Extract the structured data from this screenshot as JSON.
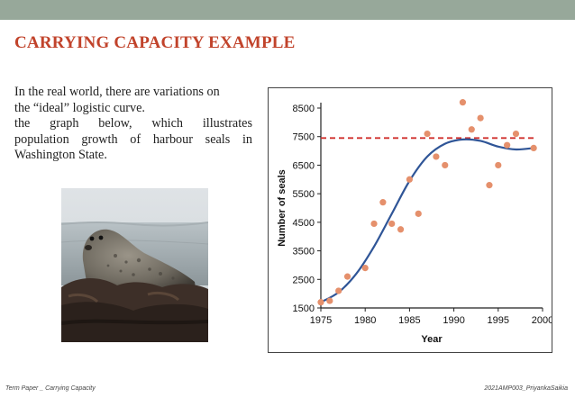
{
  "slide": {
    "title": "CARRYING CAPACITY EXAMPLE",
    "body_lines": [
      "In the real world, there are variations on",
      "the “ideal” logistic curve.",
      "the graph below, which illustrates",
      "population growth of harbour seals in",
      "Washington State."
    ],
    "footer_left": "Term Paper _ Carrying Capacity",
    "footer_right": "2021AMP003_PriyankaSaikia"
  },
  "colors": {
    "accent": "#c1432b",
    "top_bar": "#97a89a",
    "curve": "#2f5597",
    "points": "#e5906c",
    "capacity_line": "#d0312d"
  },
  "chart_data": {
    "type": "scatter",
    "xlabel": "Year",
    "ylabel": "Number of seals",
    "xlim": [
      1975,
      2000
    ],
    "ylim": [
      1500,
      8500
    ],
    "xticks": [
      1975,
      1980,
      1985,
      1990,
      1995,
      2000
    ],
    "yticks": [
      1500,
      2500,
      3500,
      4500,
      5500,
      6500,
      7500,
      8500
    ],
    "grid": false,
    "series": [
      {
        "kind": "points",
        "x": [
          1975,
          1976,
          1977,
          1978,
          1980,
          1981,
          1982,
          1983,
          1984,
          1985,
          1986,
          1987,
          1988,
          1989,
          1991,
          1992,
          1993,
          1994,
          1995,
          1996,
          1997,
          1999
        ],
        "y": [
          1700,
          1750,
          2100,
          2600,
          2900,
          4450,
          5200,
          4450,
          4250,
          6000,
          4800,
          7600,
          6800,
          6500,
          8700,
          7750,
          8150,
          5800,
          6500,
          7200,
          7600,
          7100
        ]
      },
      {
        "kind": "logistic-fit",
        "x": [
          1975,
          1977,
          1979,
          1981,
          1983,
          1985,
          1987,
          1989,
          1991,
          1993,
          1995,
          1997,
          1999
        ],
        "y": [
          1700,
          2050,
          2700,
          3650,
          4800,
          5950,
          6800,
          7250,
          7400,
          7350,
          7150,
          7050,
          7100
        ]
      },
      {
        "kind": "carrying-capacity",
        "y": 7450
      }
    ]
  }
}
